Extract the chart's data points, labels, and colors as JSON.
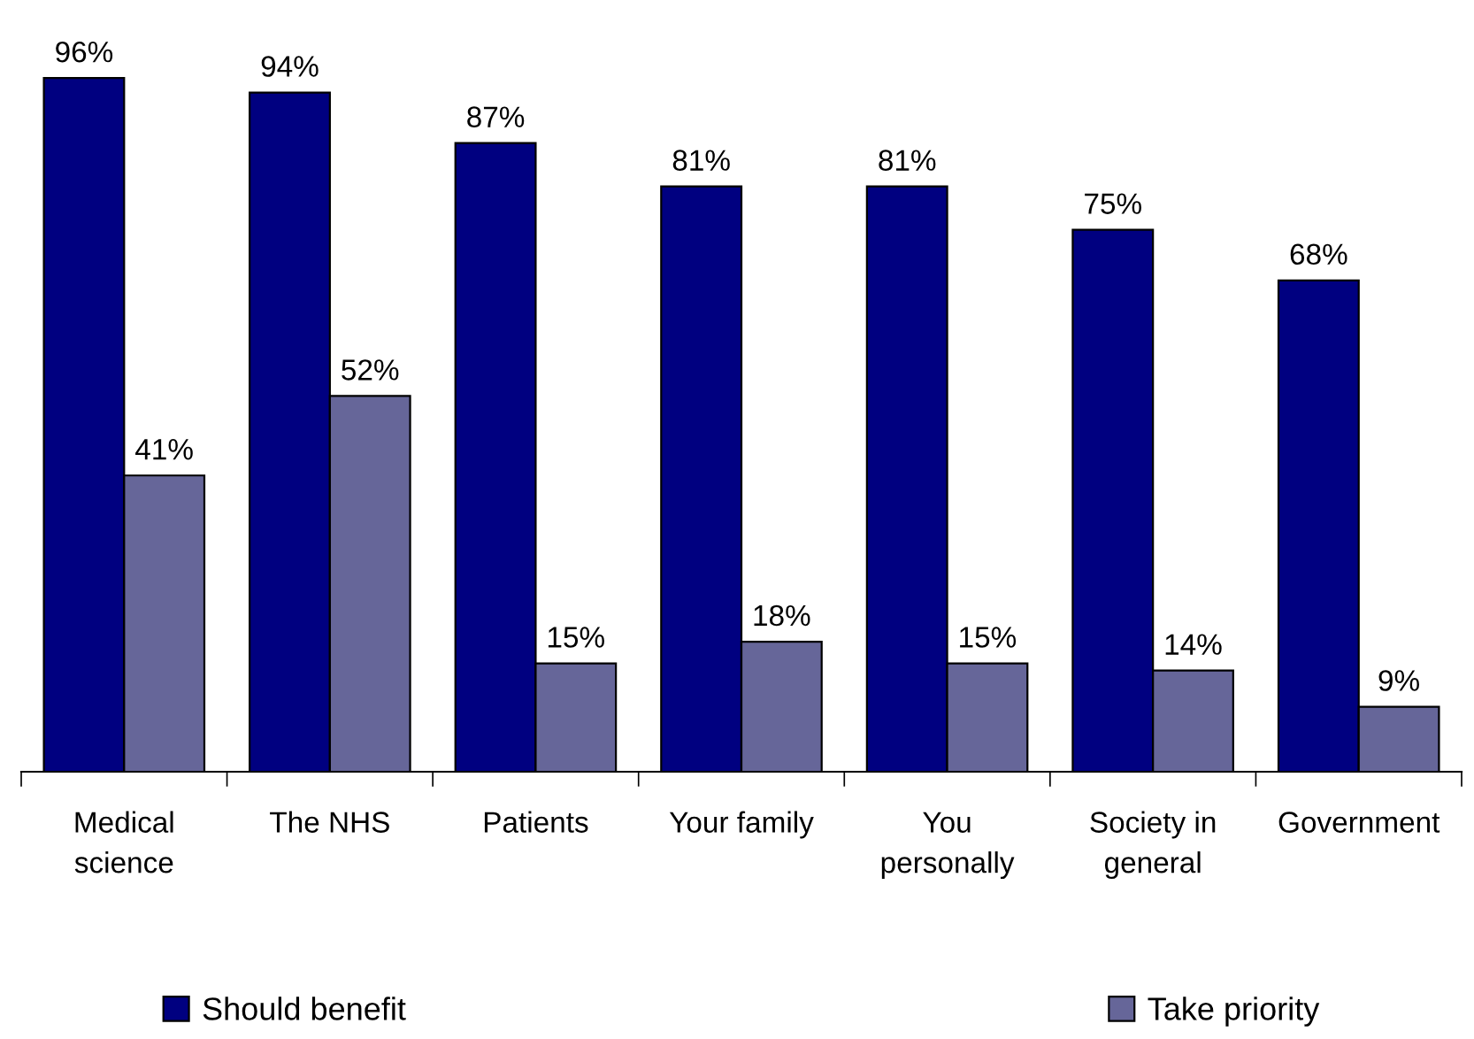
{
  "chart_data": {
    "type": "bar",
    "categories": [
      "Medical\nscience",
      "The NHS",
      "Patients",
      "Your family",
      "You\npersonally",
      "Society in\ngeneral",
      "Government"
    ],
    "series": [
      {
        "name": "Should benefit",
        "color": "#000080",
        "values": [
          96,
          94,
          87,
          81,
          81,
          75,
          68
        ],
        "value_labels": [
          "96%",
          "94%",
          "87%",
          "81%",
          "81%",
          "75%",
          "68%"
        ]
      },
      {
        "name": "Take priority",
        "color": "#666699",
        "values": [
          41,
          52,
          15,
          18,
          15,
          14,
          9
        ],
        "value_labels": [
          "41%",
          "52%",
          "15%",
          "18%",
          "15%",
          "14%",
          "9%"
        ]
      }
    ],
    "legend": "bottom",
    "grid": false
  }
}
